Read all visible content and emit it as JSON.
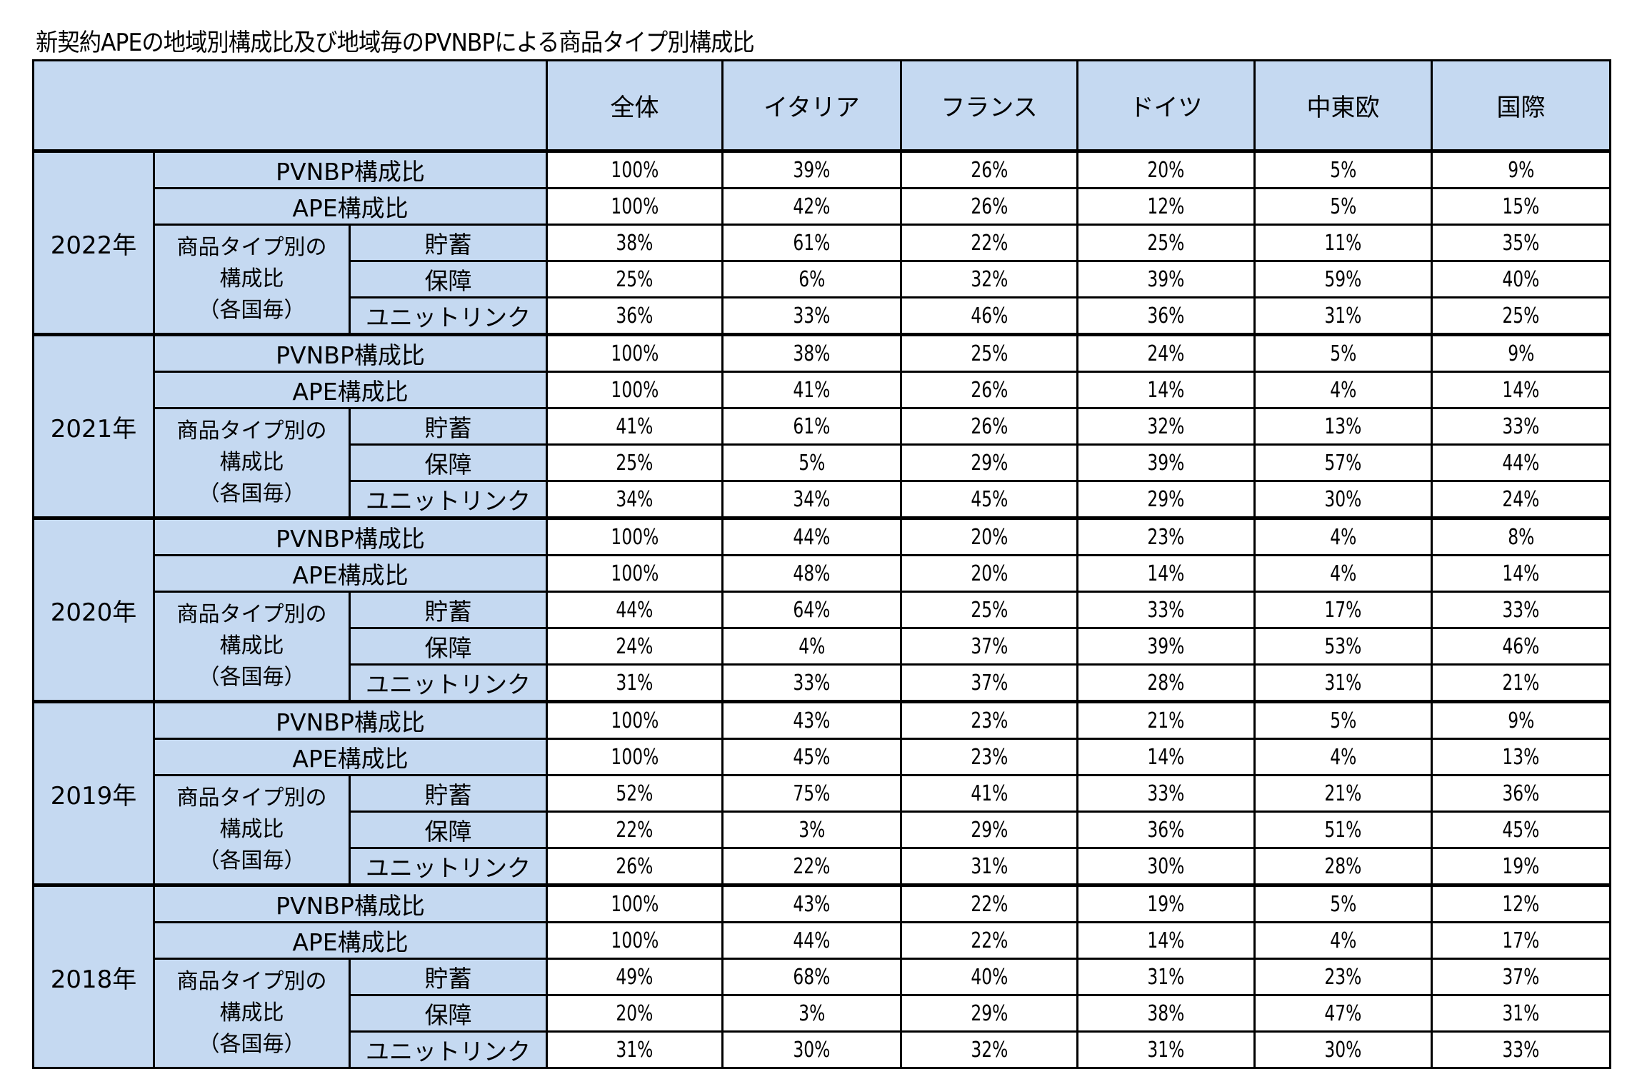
{
  "title": "新契約APEの地域別構成比及び地域毎のPVNBPによる商品タイプ別構成比",
  "header": {
    "corner": "",
    "columns": [
      "全体",
      "イタリア",
      "フランス",
      "ドイツ",
      "中東欧",
      "国際"
    ]
  },
  "row_labels": {
    "pvnbp": "PVNBP構成比",
    "ape": "APE構成比",
    "category_line1": "商品タイプ別の",
    "category_line2": "構成比",
    "category_line3": "（各国毎）",
    "savings": "貯蓄",
    "protection": "保障",
    "unit_linked": "ユニットリンク"
  },
  "colors": {
    "header_fill": "#C5D9F1",
    "border": "#000000"
  },
  "years": [
    {
      "year": "2022年",
      "pvnbp": [
        "100%",
        "39%",
        "26%",
        "20%",
        "5%",
        "9%"
      ],
      "ape": [
        "100%",
        "42%",
        "26%",
        "12%",
        "5%",
        "15%"
      ],
      "savings": [
        "38%",
        "61%",
        "22%",
        "25%",
        "11%",
        "35%"
      ],
      "protection": [
        "25%",
        "6%",
        "32%",
        "39%",
        "59%",
        "40%"
      ],
      "unit_linked": [
        "36%",
        "33%",
        "46%",
        "36%",
        "31%",
        "25%"
      ]
    },
    {
      "year": "2021年",
      "pvnbp": [
        "100%",
        "38%",
        "25%",
        "24%",
        "5%",
        "9%"
      ],
      "ape": [
        "100%",
        "41%",
        "26%",
        "14%",
        "4%",
        "14%"
      ],
      "savings": [
        "41%",
        "61%",
        "26%",
        "32%",
        "13%",
        "33%"
      ],
      "protection": [
        "25%",
        "5%",
        "29%",
        "39%",
        "57%",
        "44%"
      ],
      "unit_linked": [
        "34%",
        "34%",
        "45%",
        "29%",
        "30%",
        "24%"
      ]
    },
    {
      "year": "2020年",
      "pvnbp": [
        "100%",
        "44%",
        "20%",
        "23%",
        "4%",
        "8%"
      ],
      "ape": [
        "100%",
        "48%",
        "20%",
        "14%",
        "4%",
        "14%"
      ],
      "savings": [
        "44%",
        "64%",
        "25%",
        "33%",
        "17%",
        "33%"
      ],
      "protection": [
        "24%",
        "4%",
        "37%",
        "39%",
        "53%",
        "46%"
      ],
      "unit_linked": [
        "31%",
        "33%",
        "37%",
        "28%",
        "31%",
        "21%"
      ]
    },
    {
      "year": "2019年",
      "pvnbp": [
        "100%",
        "43%",
        "23%",
        "21%",
        "5%",
        "9%"
      ],
      "ape": [
        "100%",
        "45%",
        "23%",
        "14%",
        "4%",
        "13%"
      ],
      "savings": [
        "52%",
        "75%",
        "41%",
        "33%",
        "21%",
        "36%"
      ],
      "protection": [
        "22%",
        "3%",
        "29%",
        "36%",
        "51%",
        "45%"
      ],
      "unit_linked": [
        "26%",
        "22%",
        "31%",
        "30%",
        "28%",
        "19%"
      ]
    },
    {
      "year": "2018年",
      "pvnbp": [
        "100%",
        "43%",
        "22%",
        "19%",
        "5%",
        "12%"
      ],
      "ape": [
        "100%",
        "44%",
        "22%",
        "14%",
        "4%",
        "17%"
      ],
      "savings": [
        "49%",
        "68%",
        "40%",
        "31%",
        "23%",
        "37%"
      ],
      "protection": [
        "20%",
        "3%",
        "29%",
        "38%",
        "47%",
        "31%"
      ],
      "unit_linked": [
        "31%",
        "30%",
        "32%",
        "31%",
        "30%",
        "33%"
      ]
    }
  ]
}
